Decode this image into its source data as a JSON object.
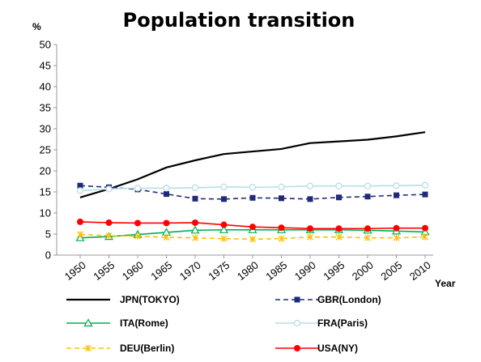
{
  "chart_data": {
    "type": "line",
    "title": "Population transition",
    "ylabel": "%",
    "xlabel": "Year",
    "ylim": [
      0,
      50
    ],
    "yticks": [
      0,
      5,
      10,
      15,
      20,
      25,
      30,
      35,
      40,
      45,
      50
    ],
    "x": [
      1950,
      1955,
      1960,
      1965,
      1970,
      1975,
      1980,
      1985,
      1990,
      1995,
      2000,
      2005,
      2010
    ],
    "series": [
      {
        "name": "JPN(TOKYO)",
        "color": "#000000",
        "dash": "solid",
        "marker": "none",
        "values": [
          13.7,
          15.7,
          18.0,
          20.8,
          22.5,
          24.0,
          24.6,
          25.2,
          26.6,
          27.0,
          27.4,
          28.2,
          29.2
        ]
      },
      {
        "name": "GBR(London)",
        "color": "#1f2a7a",
        "dash": "dashed",
        "marker": "square",
        "values": [
          16.5,
          16.1,
          15.6,
          14.5,
          13.4,
          13.3,
          13.6,
          13.5,
          13.3,
          13.7,
          13.9,
          14.2,
          14.4
        ]
      },
      {
        "name": "ITA(Rome)",
        "color": "#00b050",
        "dash": "solid",
        "marker": "triangle",
        "values": [
          4.1,
          4.4,
          4.9,
          5.4,
          5.9,
          6.0,
          6.0,
          6.0,
          6.0,
          6.0,
          5.9,
          5.7,
          5.5
        ]
      },
      {
        "name": "FRA(Paris)",
        "color": "#b7dee8",
        "dash": "solid",
        "marker": "circle-open",
        "values": [
          15.3,
          15.7,
          15.9,
          15.9,
          16.0,
          16.2,
          16.1,
          16.2,
          16.4,
          16.4,
          16.4,
          16.5,
          16.6
        ]
      },
      {
        "name": "DEU(Berlin)",
        "color": "#ffc000",
        "dash": "dashed",
        "marker": "x",
        "values": [
          4.9,
          4.6,
          4.5,
          4.2,
          4.1,
          3.9,
          3.8,
          3.9,
          4.3,
          4.3,
          4.1,
          4.1,
          4.3
        ]
      },
      {
        "name": "USA(NY)",
        "color": "#ff0000",
        "dash": "solid",
        "marker": "circle-filled",
        "values": [
          7.9,
          7.7,
          7.6,
          7.6,
          7.7,
          7.2,
          6.7,
          6.5,
          6.3,
          6.3,
          6.3,
          6.4,
          6.4
        ]
      }
    ],
    "legend": "bottom",
    "grid": false
  }
}
